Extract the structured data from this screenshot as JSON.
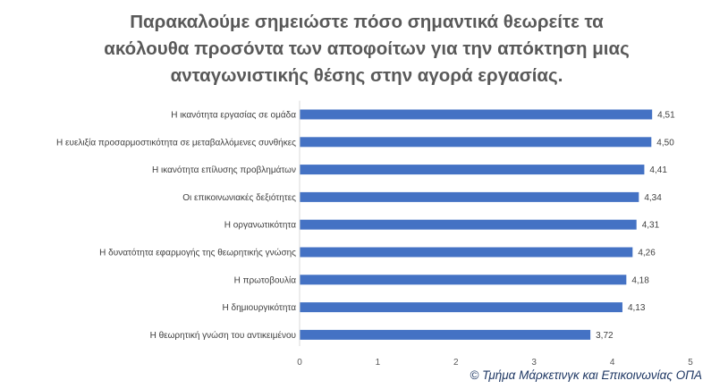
{
  "chart_data": {
    "type": "bar",
    "orientation": "horizontal",
    "title_lines": [
      "Παρακαλούμε σημειώστε πόσο σημαντικά θεωρείτε τα",
      "ακόλουθα προσόντα των αποφοίτων για την απόκτηση μιας",
      "ανταγωνιστικής θέσης στην αγορά εργασίας."
    ],
    "categories": [
      "Η ικανότητα εργασίας σε ομάδα",
      "Η ευελιξία προσαρμοστικότητα σε μεταβαλλόμενες συνθήκες",
      "Η ικανότητα επίλυσης προβλημάτων",
      "Οι επικοινωνιακές δεξιότητες",
      "Η οργανωτικότητα",
      "Η δυνατότητα εφαρμογής της θεωρητικής γνώσης",
      "Η πρωτοβουλία",
      "Η δημιουργικότητα",
      "Η θεωρητική γνώση του αντικειμένου"
    ],
    "values": [
      4.51,
      4.5,
      4.41,
      4.34,
      4.31,
      4.26,
      4.18,
      4.13,
      3.72
    ],
    "value_labels": [
      "4,51",
      "4,50",
      "4,41",
      "4,34",
      "4,31",
      "4,26",
      "4,18",
      "4,13",
      "3,72"
    ],
    "xlim": [
      0,
      5
    ],
    "x_ticks": [
      0,
      1,
      2,
      3,
      4,
      5
    ],
    "grid": false,
    "bar_color": "#4472c4"
  },
  "footer": {
    "credit": "© Τμήμα Μάρκετινγκ και Επικοινωνίας ΟΠΑ"
  }
}
